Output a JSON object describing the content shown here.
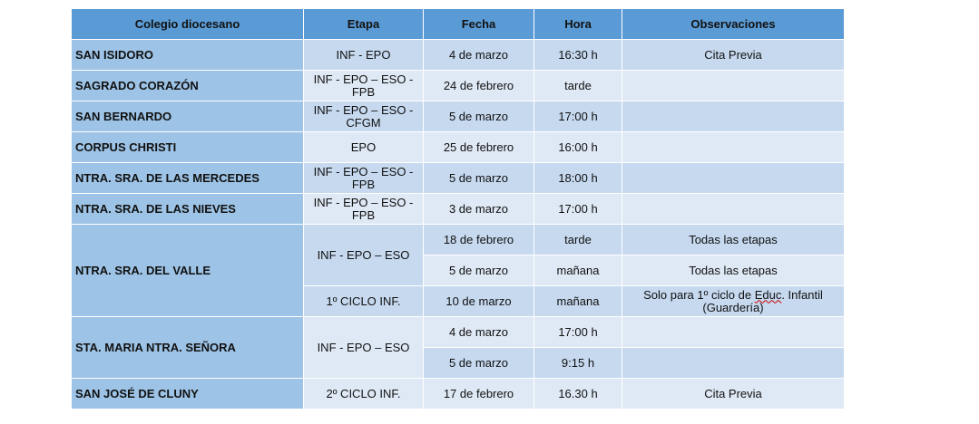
{
  "headers": {
    "colegio": "Colegio diocesano",
    "etapa": "Etapa",
    "fecha": "Fecha",
    "hora": "Hora",
    "observaciones": "Observaciones"
  },
  "rows": [
    {
      "colegio": "SAN ISIDORO",
      "etapa": "INF - EPO",
      "fecha": "4 de marzo",
      "hora": "16:30 h",
      "obs": "Cita Previa"
    },
    {
      "colegio": "SAGRADO CORAZÓN",
      "etapa": "INF - EPO – ESO - FPB",
      "fecha": "24 de febrero",
      "hora": "tarde",
      "obs": ""
    },
    {
      "colegio": "SAN BERNARDO",
      "etapa": "INF - EPO – ESO - CFGM",
      "fecha": "5 de marzo",
      "hora": "17:00 h",
      "obs": ""
    },
    {
      "colegio": "CORPUS CHRISTI",
      "etapa": "EPO",
      "fecha": "25 de febrero",
      "hora": "16:00 h",
      "obs": ""
    },
    {
      "colegio": "NTRA. SRA. DE LAS MERCEDES",
      "etapa": "INF - EPO – ESO - FPB",
      "fecha": "5 de marzo",
      "hora": "18:00 h",
      "obs": ""
    },
    {
      "colegio": "NTRA. SRA. DE LAS NIEVES",
      "etapa": "INF - EPO – ESO - FPB",
      "fecha": "3 de marzo",
      "hora": "17:00 h",
      "obs": ""
    }
  ],
  "valle": {
    "colegio": "NTRA. SRA. DEL VALLE",
    "etapa1": "INF - EPO – ESO",
    "r1": {
      "fecha": "18 de febrero",
      "hora": "tarde",
      "obs": "Todas las etapas"
    },
    "r2": {
      "fecha": "5 de marzo",
      "hora": "mañana",
      "obs": "Todas las etapas"
    },
    "etapa2": "1º CICLO INF.",
    "r3": {
      "fecha": "10 de marzo",
      "hora": "mañana",
      "obs_a": "Solo para 1º ciclo de ",
      "obs_b": "Educ",
      "obs_c": ". Infantil (Guardería)"
    }
  },
  "maria": {
    "colegio": "STA. MARIA NTRA. SEÑORA",
    "etapa": "INF - EPO – ESO",
    "r1": {
      "fecha": "4 de marzo",
      "hora": "17:00 h",
      "obs": ""
    },
    "r2": {
      "fecha": "5 de marzo",
      "hora": "9:15 h",
      "obs": ""
    }
  },
  "cluny": {
    "colegio": "SAN JOSÉ DE CLUNY",
    "etapa": "2º CICLO INF.",
    "fecha": "17 de febrero",
    "hora": "16.30 h",
    "obs": "Cita Previa"
  }
}
